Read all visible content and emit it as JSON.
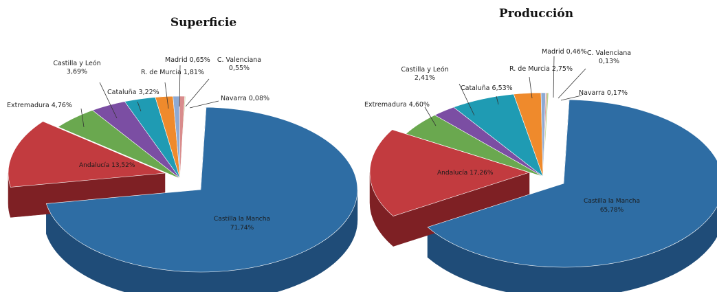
{
  "chart_data": [
    {
      "type": "pie",
      "title": "Superficie",
      "slices": [
        {
          "name": "Castilla la Mancha",
          "value": 71.74,
          "label": "71,74%",
          "color": "#2e6da4",
          "dark": "#1f4c78"
        },
        {
          "name": "Andalucía",
          "value": 13.52,
          "label": "13,52%",
          "color": "#c23b3f",
          "dark": "#7e2024"
        },
        {
          "name": "Extremadura",
          "value": 4.76,
          "label": "4,76%",
          "color": "#6aa84f",
          "dark": "#456f33"
        },
        {
          "name": "Castilla y León",
          "value": 3.69,
          "label": "3,69%",
          "color": "#7b4ea3",
          "dark": "#51326c"
        },
        {
          "name": "Cataluña",
          "value": 3.22,
          "label": "3,22%",
          "color": "#1f9bb3",
          "dark": "#146777"
        },
        {
          "name": "R. de Murcia",
          "value": 1.81,
          "label": "1,81%",
          "color": "#ef8a2c",
          "dark": "#a55c1b"
        },
        {
          "name": "Madrid",
          "value": 0.65,
          "label": "0,65%",
          "color": "#8eaad3",
          "dark": "#5f7596"
        },
        {
          "name": "C. Valenciana",
          "value": 0.55,
          "label": "0,55%",
          "color": "#d98c8c",
          "dark": "#945c5c"
        },
        {
          "name": "Navarra",
          "value": 0.08,
          "label": "0,08%",
          "color": "#b8d08a",
          "dark": "#7d8f5c"
        }
      ]
    },
    {
      "type": "pie",
      "title": "Producción",
      "slices": [
        {
          "name": "Castilla la Mancha",
          "value": 65.78,
          "label": "65,78%",
          "color": "#2e6da4",
          "dark": "#1f4c78"
        },
        {
          "name": "Andalucía",
          "value": 17.26,
          "label": "17,26%",
          "color": "#c23b3f",
          "dark": "#7e2024"
        },
        {
          "name": "Extremadura",
          "value": 4.6,
          "label": "4,60%",
          "color": "#6aa84f",
          "dark": "#456f33"
        },
        {
          "name": "Castilla y León",
          "value": 2.41,
          "label": "2,41%",
          "color": "#7b4ea3",
          "dark": "#51326c"
        },
        {
          "name": "Cataluña",
          "value": 6.53,
          "label": "6,53%",
          "color": "#1f9bb3",
          "dark": "#146777"
        },
        {
          "name": "R. de Murcia",
          "value": 2.75,
          "label": "2,75%",
          "color": "#ef8a2c",
          "dark": "#a55c1b"
        },
        {
          "name": "Madrid",
          "value": 0.46,
          "label": "0,46%",
          "color": "#8eaad3",
          "dark": "#5f7596"
        },
        {
          "name": "C. Valenciana",
          "value": 0.13,
          "label": "0,13%",
          "color": "#d98c8c",
          "dark": "#945c5c"
        },
        {
          "name": "Navarra",
          "value": 0.17,
          "label": "0,17%",
          "color": "#b8d08a",
          "dark": "#7d8f5c"
        }
      ]
    }
  ]
}
